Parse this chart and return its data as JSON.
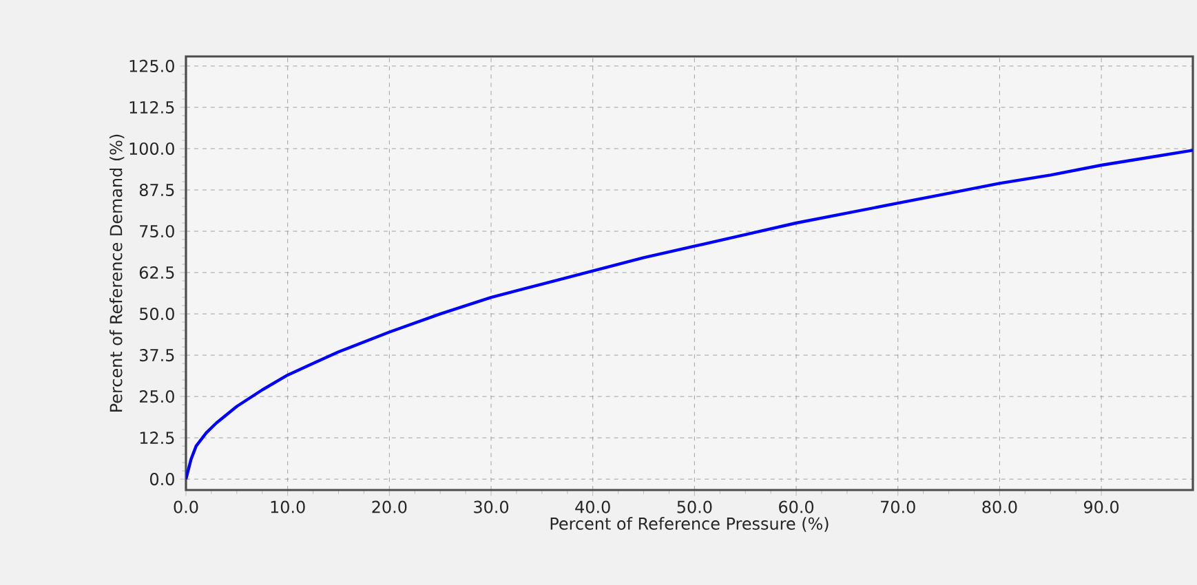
{
  "chart_data": {
    "type": "line",
    "xlabel": "Percent of Reference Pressure (%)",
    "ylabel": "Percent of Reference Demand (%)",
    "x": [
      0,
      0.5,
      1,
      2,
      3,
      5,
      7.5,
      10,
      12.5,
      15,
      20,
      25,
      30,
      35,
      40,
      45,
      50,
      55,
      60,
      65,
      70,
      75,
      80,
      85,
      90,
      95,
      99
    ],
    "series": [
      {
        "color": "#0000ff",
        "values": [
          0,
          6,
          10,
          14,
          17,
          22,
          27,
          31.5,
          35,
          38.5,
          44.5,
          50,
          55,
          59,
          63,
          67,
          70.5,
          74,
          77.5,
          80.5,
          83.5,
          86.5,
          89.5,
          92,
          95,
          97.5,
          99.5
        ]
      }
    ],
    "xlim": [
      0,
      99
    ],
    "ylim": [
      -3.3,
      127.9
    ],
    "xticks": [
      {
        "value": 0,
        "label": "0.0"
      },
      {
        "value": 10,
        "label": "10.0"
      },
      {
        "value": 20,
        "label": "20.0"
      },
      {
        "value": 30,
        "label": "30.0"
      },
      {
        "value": 40,
        "label": "40.0"
      },
      {
        "value": 50,
        "label": "50.0"
      },
      {
        "value": 60,
        "label": "60.0"
      },
      {
        "value": 70,
        "label": "70.0"
      },
      {
        "value": 80,
        "label": "80.0"
      },
      {
        "value": 90,
        "label": "90.0"
      }
    ],
    "yticks": [
      {
        "value": 0,
        "label": "0.0"
      },
      12.5,
      {
        "value": 25,
        "label": "25.0"
      },
      37.5,
      {
        "value": 50,
        "label": "50.0"
      },
      62.5,
      {
        "value": 75,
        "label": "75.0"
      },
      87.5,
      {
        "value": 100,
        "label": "100.0"
      },
      112.5,
      {
        "value": 125,
        "label": "125.0"
      }
    ],
    "grid": true,
    "marker": "none",
    "line_style": "solid"
  }
}
